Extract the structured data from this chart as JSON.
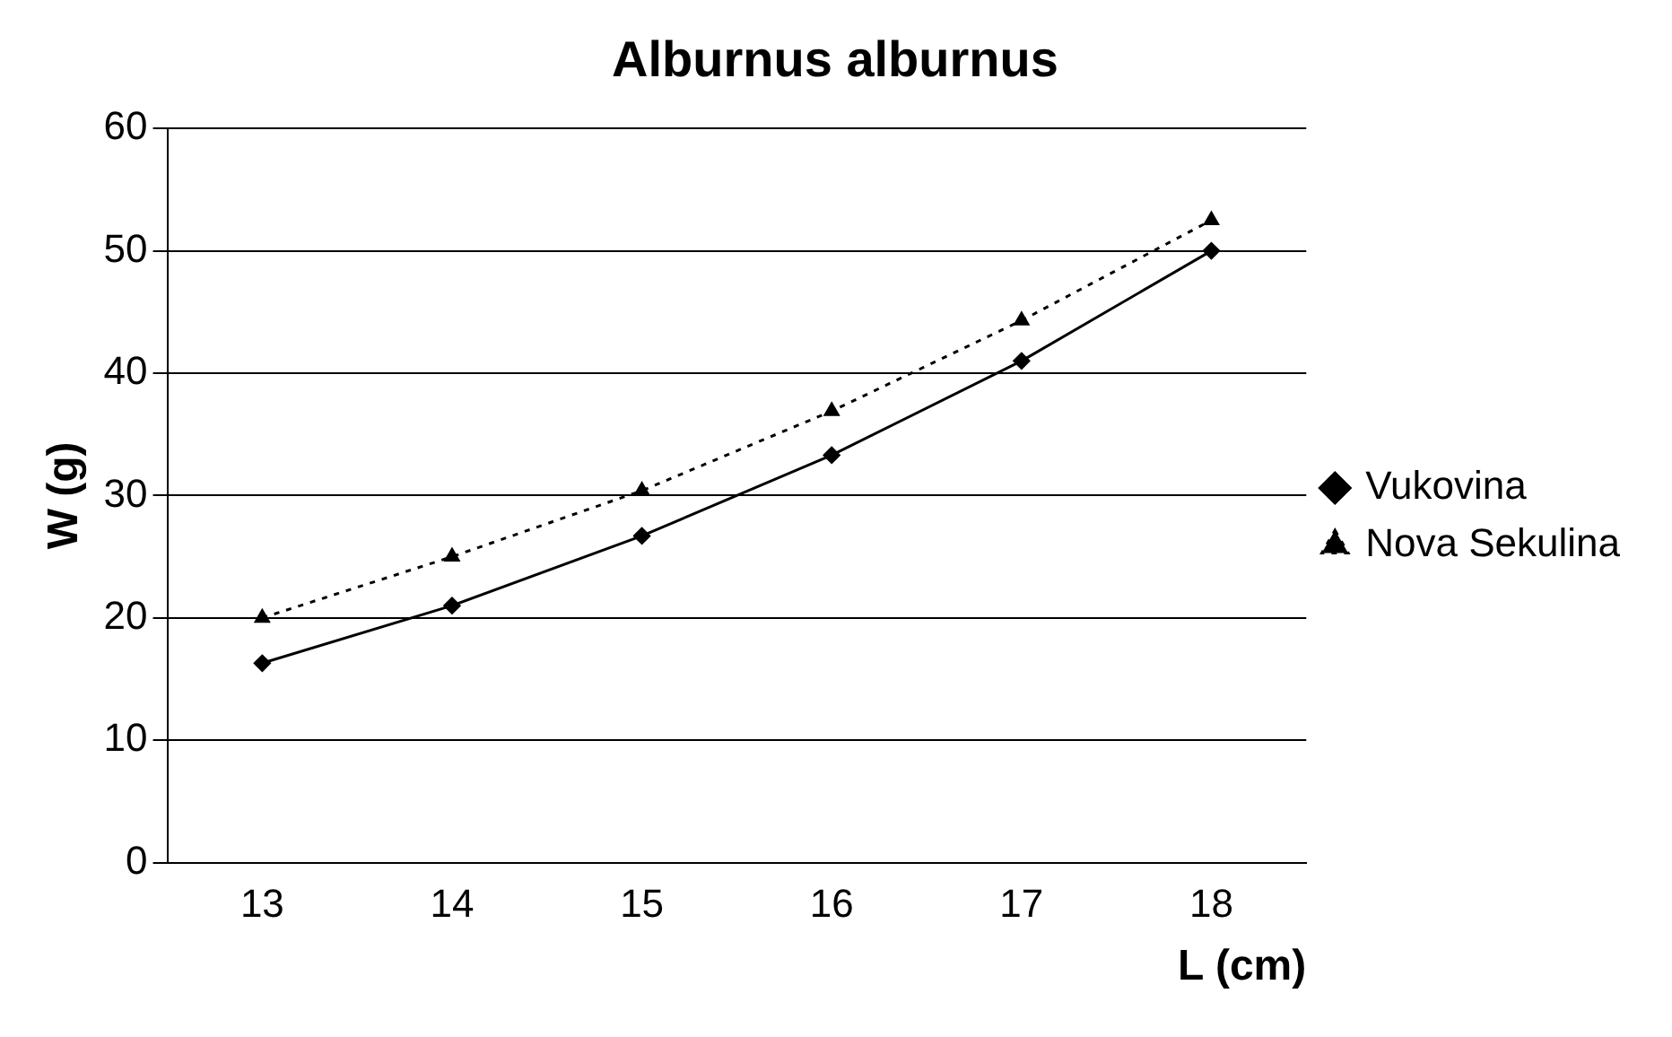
{
  "chart_data": {
    "type": "line",
    "title": "Alburnus alburnus",
    "xlabel": "L (cm)",
    "ylabel": "W (g)",
    "categories": [
      "13",
      "14",
      "15",
      "16",
      "17",
      "18"
    ],
    "series": [
      {
        "name": "Vukovina",
        "color": "#000000",
        "values": [
          16.3,
          21,
          26.7,
          33.3,
          41,
          50
        ],
        "marker": "diamond",
        "line_style": "solid"
      },
      {
        "name": "Nova Sekulina",
        "color": "#000000",
        "values": [
          20,
          25,
          30.4,
          36.9,
          44.3,
          52.5
        ],
        "marker": "triangle",
        "line_style": "dotted"
      }
    ],
    "ylim": [
      0,
      60
    ],
    "yticks": [
      0,
      10,
      20,
      30,
      40,
      50,
      60
    ],
    "grid": "y",
    "legend": "right"
  }
}
